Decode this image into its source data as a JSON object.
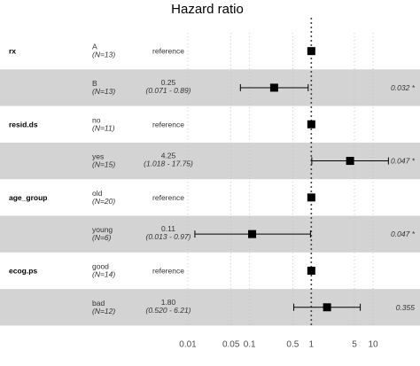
{
  "chart_data": {
    "type": "forest",
    "title": "Hazard ratio",
    "x_scale": "log",
    "xlim": [
      0.01,
      20
    ],
    "x_ticks": [
      "0.01",
      "0.05",
      "0.1",
      "0.5",
      "1",
      "5",
      "10"
    ],
    "reference_line": 1,
    "rows": [
      {
        "variable": "rx",
        "level": "A",
        "n": "(N=13)",
        "estimate_text": "reference",
        "ci_text": "",
        "hr": 1,
        "lo": null,
        "hi": null,
        "p_text": "",
        "reference": true
      },
      {
        "variable": "",
        "level": "B",
        "n": "(N=13)",
        "estimate_text": "0.25",
        "ci_text": "(0.071 -  0.89)",
        "hr": 0.25,
        "lo": 0.071,
        "hi": 0.89,
        "p_text": "0.032 *",
        "reference": false
      },
      {
        "variable": "resid.ds",
        "level": "no",
        "n": "(N=11)",
        "estimate_text": "reference",
        "ci_text": "",
        "hr": 1,
        "lo": null,
        "hi": null,
        "p_text": "",
        "reference": true
      },
      {
        "variable": "",
        "level": "yes",
        "n": "(N=15)",
        "estimate_text": "4.25",
        "ci_text": "(1.018 - 17.75)",
        "hr": 4.25,
        "lo": 1.018,
        "hi": 17.75,
        "p_text": "0.047 *",
        "reference": false
      },
      {
        "variable": "age_group",
        "level": "old",
        "n": "(N=20)",
        "estimate_text": "reference",
        "ci_text": "",
        "hr": 1,
        "lo": null,
        "hi": null,
        "p_text": "",
        "reference": true
      },
      {
        "variable": "",
        "level": "young",
        "n": "(N=6)",
        "estimate_text": "0.11",
        "ci_text": "(0.013 -  0.97)",
        "hr": 0.11,
        "lo": 0.013,
        "hi": 0.97,
        "p_text": "0.047 *",
        "reference": false
      },
      {
        "variable": "ecog.ps",
        "level": "good",
        "n": "(N=14)",
        "estimate_text": "reference",
        "ci_text": "",
        "hr": 1,
        "lo": null,
        "hi": null,
        "p_text": "",
        "reference": true
      },
      {
        "variable": "",
        "level": "bad",
        "n": "(N=12)",
        "estimate_text": "1.80",
        "ci_text": "(0.520 -  6.21)",
        "hr": 1.8,
        "lo": 0.52,
        "hi": 6.21,
        "p_text": "0.355",
        "reference": false
      }
    ],
    "colors": {
      "band": "#d3d3d3",
      "background": "#ffffff",
      "marker": "#000000",
      "text": "#000000"
    }
  }
}
